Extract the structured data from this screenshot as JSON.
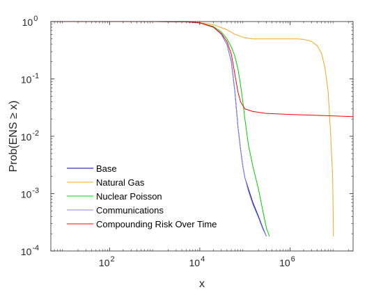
{
  "chart_data": {
    "type": "line",
    "xlabel": "x",
    "ylabel": "Prob(ENS ≥ x)",
    "xscale": "log",
    "yscale": "log",
    "xlim": [
      5,
      25000000
    ],
    "ylim": [
      0.0001,
      1
    ],
    "xticks": [
      {
        "value": 100,
        "base": "10",
        "exp": "2"
      },
      {
        "value": 10000,
        "base": "10",
        "exp": "4"
      },
      {
        "value": 1000000,
        "base": "10",
        "exp": "6"
      }
    ],
    "yticks": [
      {
        "value": 1,
        "base": "10",
        "exp": "0"
      },
      {
        "value": 0.1,
        "base": "10",
        "exp": "-1"
      },
      {
        "value": 0.01,
        "base": "10",
        "exp": "-2"
      },
      {
        "value": 0.001,
        "base": "10",
        "exp": "-3"
      },
      {
        "value": 0.0001,
        "base": "10",
        "exp": "-4"
      }
    ],
    "grid": false,
    "legend_position": "bottom-left",
    "series": [
      {
        "name": "Base",
        "color": "#0000ab",
        "points": [
          [
            5,
            1.0
          ],
          [
            1000,
            1.0
          ],
          [
            5000,
            0.99
          ],
          [
            10000,
            0.95
          ],
          [
            20000,
            0.8
          ],
          [
            30000,
            0.6
          ],
          [
            40000,
            0.4
          ],
          [
            50000,
            0.2
          ],
          [
            60000,
            0.06
          ],
          [
            70000,
            0.015
          ],
          [
            80000,
            0.006
          ],
          [
            90000,
            0.003
          ],
          [
            100000,
            0.0019
          ],
          [
            120000,
            0.0012
          ],
          [
            150000,
            0.0007
          ],
          [
            200000,
            0.0004
          ],
          [
            250000,
            0.00025
          ],
          [
            300000,
            0.00018
          ]
        ]
      },
      {
        "name": "Natural Gas",
        "color": "#f0a820",
        "points": [
          [
            5,
            1.0
          ],
          [
            1000,
            1.0
          ],
          [
            5000,
            0.99
          ],
          [
            10000,
            0.96
          ],
          [
            20000,
            0.88
          ],
          [
            40000,
            0.72
          ],
          [
            60000,
            0.6
          ],
          [
            100000,
            0.52
          ],
          [
            150000,
            0.5
          ],
          [
            300000,
            0.5
          ],
          [
            1000000,
            0.5
          ],
          [
            1500000,
            0.5
          ],
          [
            2000000,
            0.49
          ],
          [
            3000000,
            0.45
          ],
          [
            4000000,
            0.38
          ],
          [
            5000000,
            0.28
          ],
          [
            6000000,
            0.15
          ],
          [
            7000000,
            0.06
          ],
          [
            8000000,
            0.01
          ],
          [
            8800000,
            0.002
          ],
          [
            9200000,
            0.00018
          ]
        ]
      },
      {
        "name": "Nuclear Poisson",
        "color": "#00d000",
        "points": [
          [
            5,
            1.0
          ],
          [
            1000,
            1.0
          ],
          [
            5000,
            0.99
          ],
          [
            10000,
            0.95
          ],
          [
            20000,
            0.82
          ],
          [
            30000,
            0.66
          ],
          [
            40000,
            0.5
          ],
          [
            50000,
            0.36
          ],
          [
            60000,
            0.25
          ],
          [
            70000,
            0.15
          ],
          [
            80000,
            0.08
          ],
          [
            90000,
            0.04
          ],
          [
            100000,
            0.02
          ],
          [
            120000,
            0.007
          ],
          [
            150000,
            0.003
          ],
          [
            200000,
            0.0012
          ],
          [
            250000,
            0.0005
          ],
          [
            300000,
            0.00025
          ],
          [
            350000,
            0.00018
          ]
        ]
      },
      {
        "name": "Communications",
        "color": "#8080ff",
        "points": [
          [
            5,
            1.0
          ],
          [
            1000,
            1.0
          ],
          [
            5000,
            0.99
          ],
          [
            10000,
            0.95
          ],
          [
            20000,
            0.8
          ],
          [
            30000,
            0.6
          ],
          [
            40000,
            0.4
          ],
          [
            50000,
            0.2
          ],
          [
            60000,
            0.06
          ],
          [
            70000,
            0.015
          ],
          [
            80000,
            0.006
          ],
          [
            90000,
            0.003
          ],
          [
            100000,
            0.0019
          ],
          [
            120000,
            0.0011
          ],
          [
            150000,
            0.00065
          ],
          [
            200000,
            0.00038
          ],
          [
            250000,
            0.00024
          ],
          [
            300000,
            0.00018
          ]
        ]
      },
      {
        "name": "Compounding Risk Over Time",
        "color": "#ff0000",
        "points": [
          [
            5,
            1.0
          ],
          [
            1000,
            1.0
          ],
          [
            5000,
            0.99
          ],
          [
            10000,
            0.95
          ],
          [
            20000,
            0.8
          ],
          [
            30000,
            0.62
          ],
          [
            40000,
            0.45
          ],
          [
            50000,
            0.27
          ],
          [
            60000,
            0.12
          ],
          [
            70000,
            0.06
          ],
          [
            80000,
            0.04
          ],
          [
            100000,
            0.03
          ],
          [
            150000,
            0.027
          ],
          [
            300000,
            0.025
          ],
          [
            1000000,
            0.024
          ],
          [
            5000000,
            0.023
          ],
          [
            25000000,
            0.022
          ]
        ]
      }
    ]
  }
}
